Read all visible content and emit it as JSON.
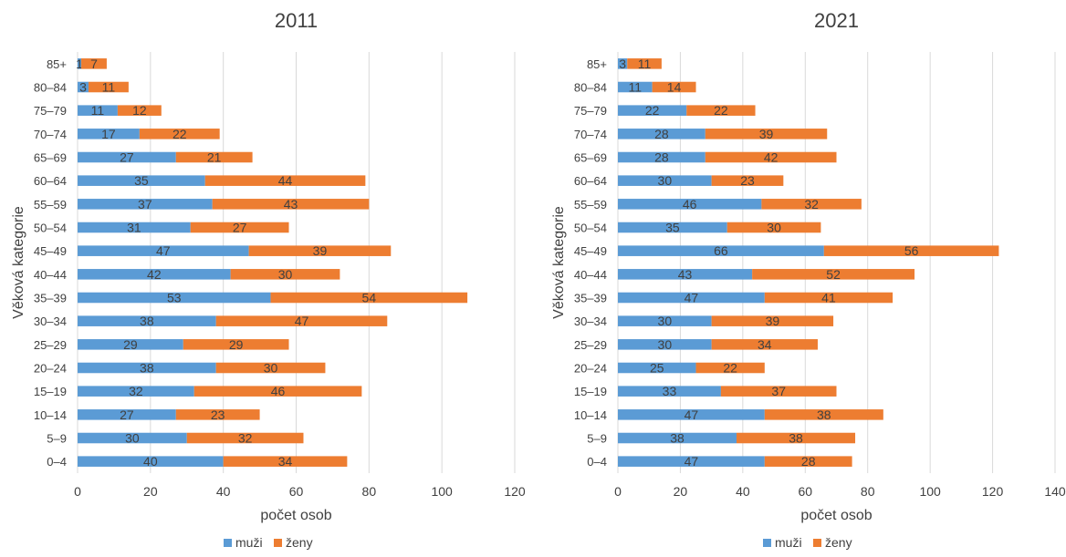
{
  "colors": {
    "muzi": "#5b9bd5",
    "zeny": "#ed7d31"
  },
  "chart_data": [
    {
      "type": "bar",
      "orientation": "horizontal",
      "stacked": true,
      "title": "2011",
      "xlabel": "počet osob",
      "ylabel": "Věková kategorie",
      "xlim": [
        0,
        120
      ],
      "xticks": [
        "0",
        "20",
        "40",
        "60",
        "80",
        "100",
        "120"
      ],
      "categories": [
        "0–4",
        "5–9",
        "10–14",
        "15–19",
        "20–24",
        "25–29",
        "30–34",
        "35–39",
        "40–44",
        "45–49",
        "50–54",
        "55–59",
        "60–64",
        "65–69",
        "70–74",
        "75–79",
        "80–84",
        "85+"
      ],
      "series": [
        {
          "name": "muži",
          "values": [
            40,
            30,
            27,
            32,
            38,
            29,
            38,
            53,
            42,
            47,
            31,
            37,
            35,
            27,
            17,
            11,
            3,
            1
          ]
        },
        {
          "name": "ženy",
          "values": [
            34,
            32,
            23,
            46,
            30,
            29,
            47,
            54,
            30,
            39,
            27,
            43,
            44,
            21,
            22,
            12,
            11,
            7
          ]
        }
      ],
      "legend": "bottom",
      "grid": true
    },
    {
      "type": "bar",
      "orientation": "horizontal",
      "stacked": true,
      "title": "2021",
      "xlabel": "počet osob",
      "ylabel": "Věková kategorie",
      "xlim": [
        0,
        140
      ],
      "xticks": [
        "0",
        "20",
        "40",
        "60",
        "80",
        "100",
        "120",
        "140"
      ],
      "categories": [
        "0–4",
        "5–9",
        "10–14",
        "15–19",
        "20–24",
        "25–29",
        "30–34",
        "35–39",
        "40–44",
        "45–49",
        "50–54",
        "55–59",
        "60–64",
        "65–69",
        "70–74",
        "75–79",
        "80–84",
        "85+"
      ],
      "series": [
        {
          "name": "muži",
          "values": [
            47,
            38,
            47,
            33,
            25,
            30,
            30,
            47,
            43,
            66,
            35,
            46,
            30,
            28,
            28,
            22,
            11,
            3
          ]
        },
        {
          "name": "ženy",
          "values": [
            28,
            38,
            38,
            37,
            22,
            34,
            39,
            41,
            52,
            56,
            30,
            32,
            23,
            42,
            39,
            22,
            14,
            11
          ]
        }
      ],
      "legend": "bottom",
      "grid": true
    }
  ]
}
